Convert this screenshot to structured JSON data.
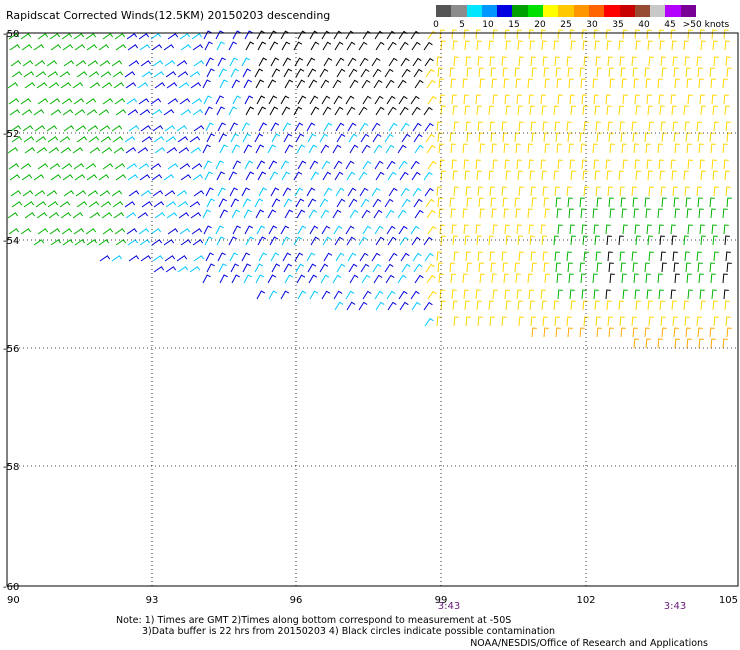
{
  "title": "Rapidscat Corrected Winds(12.5KM) 20150203 descending",
  "legend": {
    "ticks": [
      "0",
      "5",
      "10",
      "15",
      "20",
      "25",
      "30",
      "35",
      "40",
      "45",
      ">50 knots"
    ],
    "colors": [
      "#555555",
      "#8c8c8c",
      "#00e6ff",
      "#0096ff",
      "#0000e0",
      "#00a000",
      "#00e000",
      "#ffff00",
      "#ffc800",
      "#ff9600",
      "#ff6400",
      "#ff0000",
      "#c80000",
      "#964b32",
      "#c8c8c8",
      "#b400ff",
      "#780096"
    ]
  },
  "map": {
    "lon_labels": [
      "90",
      "93",
      "96",
      "99",
      "102",
      "105"
    ],
    "lat_labels": [
      "-50",
      "-52",
      "-54",
      "-56",
      "-58",
      "-60"
    ],
    "time_labels": [
      "3:43",
      "3:43"
    ]
  },
  "notes": {
    "line1": "Note: 1) Times are GMT 2)Times along bottom correspond to measurement at -50S",
    "line2": "3)Data buffer is 22 hrs from 20150203 4) Black circles indicate possible contamination"
  },
  "credit": "NOAA/NESDIS/Office of Research and Applications"
}
